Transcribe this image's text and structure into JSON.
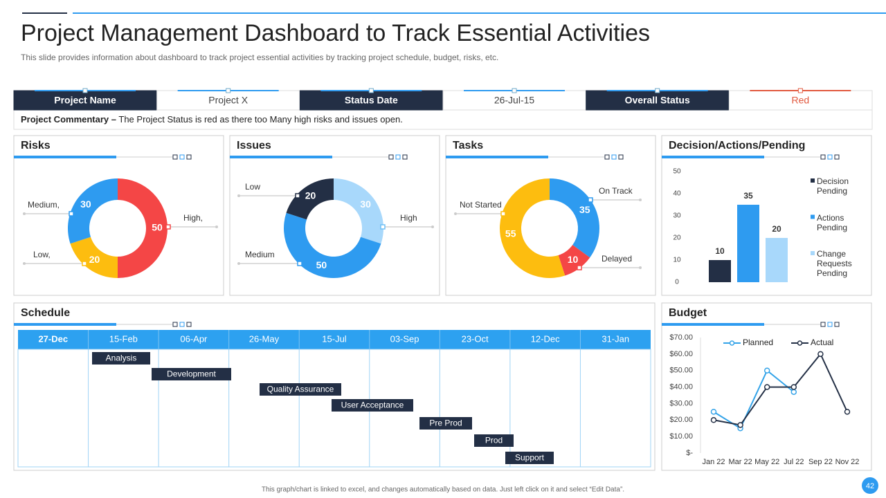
{
  "header": {
    "title": "Project Management Dashboard to Track Essential Activities",
    "subtitle": "This slide provides information about dashboard to track project essential activities by tracking project schedule, budget, risks, etc."
  },
  "project": {
    "cells": [
      "Project Name",
      "Project X",
      "Status Date",
      "26-Jul-15",
      "Overall Status",
      "Red"
    ],
    "commentary_label": "Project Commentary –",
    "commentary": "The Project Status is red as there too Many high risks and issues open."
  },
  "chart_data": [
    {
      "type": "pie",
      "title": "Risks",
      "categories": [
        "High,",
        "Low,",
        "Medium,"
      ],
      "values": [
        50,
        20,
        30
      ],
      "colors": [
        "#f44646",
        "#fdbd0f",
        "#2e9bf0"
      ]
    },
    {
      "type": "pie",
      "title": "Issues",
      "categories": [
        "High",
        "Medium",
        "Low"
      ],
      "values": [
        30,
        50,
        20
      ],
      "colors": [
        "#a8d8fb",
        "#2e9bf0",
        "#232f45"
      ]
    },
    {
      "type": "pie",
      "title": "Tasks",
      "categories": [
        "On Track",
        "Delayed",
        "Not Started"
      ],
      "values": [
        35,
        10,
        55
      ],
      "colors": [
        "#2e9bf0",
        "#f44646",
        "#fdbd0f"
      ]
    },
    {
      "type": "bar",
      "title": "Decision/Actions/Pending",
      "series": [
        {
          "name": "Decision Pending",
          "color": "#232f45",
          "values": [
            10
          ]
        },
        {
          "name": "Actions Pending",
          "color": "#2e9bf0",
          "values": [
            35
          ]
        },
        {
          "name": "Change Requests Pending",
          "color": "#a8d8fb",
          "values": [
            20
          ]
        }
      ],
      "ylim": [
        0,
        50
      ],
      "yticks": [
        0,
        10,
        20,
        30,
        40,
        50
      ]
    },
    {
      "type": "line",
      "title": "Budget",
      "categories": [
        "Jan 22",
        "Mar 22",
        "May 22",
        "Jul 22",
        "Sep 22",
        "Nov 22"
      ],
      "series": [
        {
          "name": "Planned",
          "color": "#33a3e8",
          "values": [
            25,
            15,
            50,
            37,
            null,
            null
          ]
        },
        {
          "name": "Actual",
          "color": "#232f45",
          "values": [
            20,
            17,
            40,
            40,
            60,
            25
          ]
        }
      ],
      "ylim": [
        0,
        70
      ],
      "yticks": [
        {
          "value": 0,
          "label": "$-"
        },
        {
          "value": 10,
          "label": "$10.00"
        },
        {
          "value": 20,
          "label": "$20.00"
        },
        {
          "value": 30,
          "label": "$30.00"
        },
        {
          "value": 40,
          "label": "$40.00"
        },
        {
          "value": 50,
          "label": "$50.00"
        },
        {
          "value": 60,
          "label": "$60.00"
        },
        {
          "value": 70,
          "label": "$70.00"
        }
      ]
    }
  ],
  "schedule": {
    "title": "Schedule",
    "dates": [
      "27-Dec",
      "15-Feb",
      "06-Apr",
      "26-May",
      "15-Jul",
      "03-Sep",
      "23-Oct",
      "12-Dec",
      "31-Jan"
    ],
    "tasks": [
      "Analysis",
      "Development",
      "Quality Assurance",
      "User Acceptance",
      "Pre Prod",
      "Prod",
      "Support"
    ]
  },
  "footer": {
    "note": "This graph/chart is linked to excel, and changes automatically based on data. Just left click on it and select “Edit Data”.",
    "page": "42"
  }
}
